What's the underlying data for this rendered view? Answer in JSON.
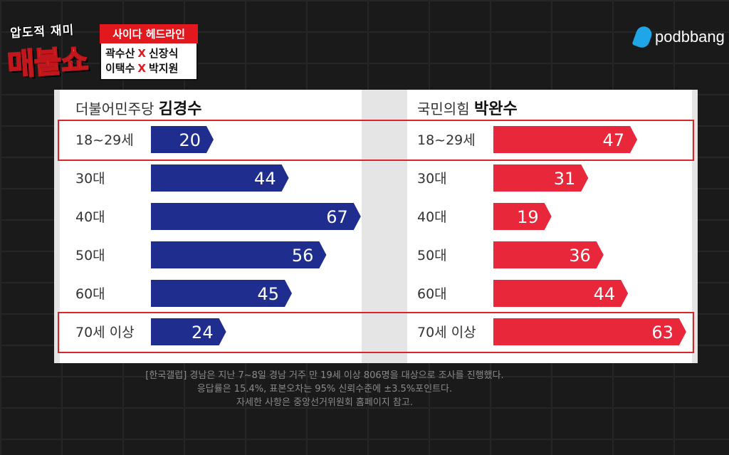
{
  "logo": {
    "top_text": "압도적 재미",
    "main_text": "매불쇼"
  },
  "headline": {
    "tag": "사이다 헤드라인",
    "line1_left": "곽수산",
    "line1_x": "X",
    "line1_right": "신장식",
    "line2_left": "이택수",
    "line2_x": "X",
    "line2_right": "박지원"
  },
  "brand": {
    "name": "podbbang",
    "icon": "podbbang-icon"
  },
  "colors": {
    "left": "#1f2e8e",
    "right": "#e8283a",
    "highlight": "#d6262b"
  },
  "chart_data": {
    "type": "bar",
    "categories": [
      "18~29세",
      "30대",
      "40대",
      "50대",
      "60대",
      "70세 이상"
    ],
    "series": [
      {
        "name": "김경수",
        "party": "더불어민주당",
        "values": [
          20,
          44,
          67,
          56,
          45,
          24
        ]
      },
      {
        "name": "박완수",
        "party": "국민의힘",
        "values": [
          47,
          31,
          19,
          36,
          44,
          63
        ]
      }
    ],
    "highlighted_categories": [
      "18~29세",
      "70세 이상"
    ],
    "xlim": [
      0,
      70
    ]
  },
  "caption": {
    "line1": "[한국갤럽] 경남은 지난 7~8일 경남 거주 만 19세 이상 806명을 대상으로 조사를 진행했다.",
    "line2": "응답률은 15.4%, 표본오차는 95% 신뢰수준에 ±3.5%포인트다.",
    "line3": "자세한 사항은 중앙선거위원회 홈페이지 참고."
  }
}
